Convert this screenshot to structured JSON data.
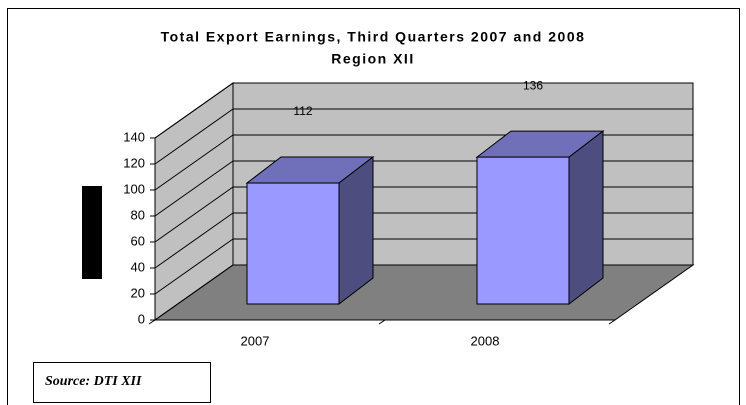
{
  "chart_data": {
    "type": "bar3d",
    "title": "Total Export Earnings, Third Quarters 2007 and 2008",
    "subtitle": "Region XII",
    "categories": [
      "2007",
      "2008"
    ],
    "values": [
      112,
      136
    ],
    "color": "#9999ff",
    "ylim": [
      0,
      140
    ],
    "yticks": [
      0,
      20,
      40,
      60,
      80,
      100,
      120,
      140
    ],
    "grid": true,
    "source": "Source: DTI XII"
  }
}
